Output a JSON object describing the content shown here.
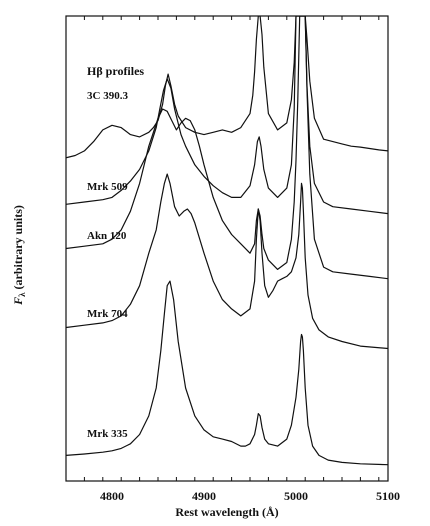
{
  "chart_data": {
    "type": "line",
    "title": "Hβ profiles",
    "xlabel": "Rest wavelength (Å)",
    "ylabel": "F",
    "ylabel_sub": "λ",
    "ylabel_rest": " (arbitrary units)",
    "xlim": [
      4750,
      5100
    ],
    "ylim": [
      0,
      1
    ],
    "xticks": [
      4800,
      4900,
      5000,
      5100
    ],
    "x_minor_step": 20,
    "grid": false,
    "series": [
      {
        "name": "3C 390.3",
        "x": [
          4750,
          4760,
          4770,
          4780,
          4790,
          4800,
          4810,
          4820,
          4830,
          4840,
          4845,
          4850,
          4855,
          4858,
          4861,
          4864,
          4868,
          4872,
          4880,
          4890,
          4900,
          4910,
          4920,
          4930,
          4940,
          4950,
          4953,
          4955,
          4957,
          4959,
          4961,
          4963,
          4965,
          4970,
          4980,
          4990,
          4995,
          4998,
          5000,
          5002,
          5004,
          5006,
          5008,
          5010,
          5012,
          5015,
          5020,
          5030,
          5040,
          5050,
          5060,
          5070,
          5080,
          5090,
          5100
        ],
        "y": [
          0.695,
          0.7,
          0.71,
          0.73,
          0.755,
          0.765,
          0.76,
          0.745,
          0.74,
          0.75,
          0.76,
          0.775,
          0.81,
          0.85,
          0.875,
          0.85,
          0.81,
          0.785,
          0.76,
          0.75,
          0.745,
          0.75,
          0.755,
          0.75,
          0.76,
          0.79,
          0.83,
          0.88,
          0.95,
          1.0,
          1.0,
          0.96,
          0.89,
          0.79,
          0.755,
          0.77,
          0.82,
          0.9,
          1.0,
          1.0,
          1.0,
          1.0,
          1.0,
          1.0,
          0.95,
          0.86,
          0.78,
          0.735,
          0.73,
          0.725,
          0.72,
          0.718,
          0.715,
          0.712,
          0.71
        ]
      },
      {
        "name": "Mrk 509",
        "x": [
          4750,
          4770,
          4790,
          4800,
          4810,
          4820,
          4830,
          4840,
          4848,
          4852,
          4856,
          4860,
          4864,
          4868,
          4875,
          4880,
          4890,
          4900,
          4910,
          4920,
          4930,
          4940,
          4950,
          4955,
          4958,
          4960,
          4962,
          4965,
          4970,
          4980,
          4990,
          4995,
          4998,
          5000,
          5002,
          5004,
          5006,
          5008,
          5010,
          5012,
          5015,
          5020,
          5030,
          5040,
          5060,
          5080,
          5100
        ],
        "y": [
          0.595,
          0.6,
          0.605,
          0.61,
          0.625,
          0.645,
          0.67,
          0.71,
          0.76,
          0.8,
          0.84,
          0.865,
          0.845,
          0.8,
          0.745,
          0.72,
          0.68,
          0.655,
          0.635,
          0.62,
          0.61,
          0.61,
          0.635,
          0.68,
          0.73,
          0.74,
          0.72,
          0.67,
          0.63,
          0.61,
          0.63,
          0.68,
          0.8,
          1.0,
          1.0,
          1.0,
          1.0,
          1.0,
          1.0,
          0.85,
          0.72,
          0.64,
          0.6,
          0.59,
          0.585,
          0.58,
          0.575
        ]
      },
      {
        "name": "Akn 120",
        "x": [
          4750,
          4770,
          4790,
          4800,
          4810,
          4820,
          4830,
          4840,
          4845,
          4850,
          4855,
          4860,
          4865,
          4870,
          4875,
          4880,
          4885,
          4890,
          4895,
          4900,
          4910,
          4920,
          4930,
          4940,
          4950,
          4955,
          4957,
          4959,
          4961,
          4963,
          4965,
          4970,
          4980,
          4990,
          4995,
          4998,
          5000,
          5002,
          5004,
          5006,
          5008,
          5010,
          5012,
          5015,
          5020,
          5030,
          5040,
          5060,
          5080,
          5100
        ],
        "y": [
          0.5,
          0.505,
          0.51,
          0.52,
          0.54,
          0.58,
          0.64,
          0.72,
          0.75,
          0.78,
          0.8,
          0.795,
          0.775,
          0.755,
          0.77,
          0.78,
          0.775,
          0.755,
          0.72,
          0.68,
          0.61,
          0.56,
          0.53,
          0.51,
          0.49,
          0.51,
          0.56,
          0.585,
          0.57,
          0.53,
          0.5,
          0.475,
          0.455,
          0.47,
          0.52,
          0.6,
          0.69,
          0.82,
          1.0,
          1.0,
          1.0,
          1.0,
          0.84,
          0.66,
          0.52,
          0.46,
          0.45,
          0.445,
          0.44,
          0.435
        ]
      },
      {
        "name": "Mrk 704",
        "x": [
          4750,
          4770,
          4790,
          4800,
          4810,
          4820,
          4830,
          4840,
          4848,
          4853,
          4857,
          4860,
          4863,
          4868,
          4873,
          4878,
          4882,
          4886,
          4890,
          4900,
          4910,
          4920,
          4930,
          4940,
          4950,
          4955,
          4957,
          4959,
          4961,
          4963,
          4966,
          4970,
          4975,
          4980,
          4985,
          4990,
          4995,
          5000,
          5003,
          5005,
          5006,
          5007,
          5008,
          5010,
          5013,
          5018,
          5025,
          5035,
          5050,
          5070,
          5100
        ],
        "y": [
          0.33,
          0.335,
          0.34,
          0.345,
          0.355,
          0.38,
          0.42,
          0.49,
          0.54,
          0.6,
          0.64,
          0.66,
          0.64,
          0.59,
          0.57,
          0.58,
          0.585,
          0.575,
          0.555,
          0.49,
          0.43,
          0.39,
          0.37,
          0.355,
          0.37,
          0.43,
          0.52,
          0.585,
          0.56,
          0.49,
          0.42,
          0.395,
          0.41,
          0.43,
          0.435,
          0.44,
          0.45,
          0.48,
          0.53,
          0.6,
          0.64,
          0.63,
          0.58,
          0.48,
          0.4,
          0.35,
          0.325,
          0.31,
          0.3,
          0.29,
          0.285
        ]
      },
      {
        "name": "Mrk 335",
        "x": [
          4750,
          4770,
          4790,
          4800,
          4810,
          4820,
          4830,
          4840,
          4848,
          4853,
          4857,
          4860,
          4863,
          4867,
          4872,
          4880,
          4890,
          4900,
          4910,
          4920,
          4930,
          4940,
          4945,
          4950,
          4955,
          4957,
          4959,
          4961,
          4963,
          4966,
          4970,
          4980,
          4990,
          4995,
          5000,
          5003,
          5005,
          5006,
          5007,
          5008,
          5010,
          5013,
          5018,
          5025,
          5035,
          5050,
          5070,
          5100
        ],
        "y": [
          0.055,
          0.058,
          0.062,
          0.065,
          0.07,
          0.08,
          0.1,
          0.14,
          0.2,
          0.28,
          0.36,
          0.42,
          0.43,
          0.39,
          0.3,
          0.2,
          0.14,
          0.11,
          0.095,
          0.09,
          0.085,
          0.075,
          0.075,
          0.08,
          0.1,
          0.12,
          0.145,
          0.14,
          0.115,
          0.09,
          0.08,
          0.075,
          0.09,
          0.12,
          0.18,
          0.24,
          0.3,
          0.315,
          0.31,
          0.28,
          0.2,
          0.12,
          0.075,
          0.055,
          0.045,
          0.04,
          0.037,
          0.035
        ]
      }
    ]
  }
}
